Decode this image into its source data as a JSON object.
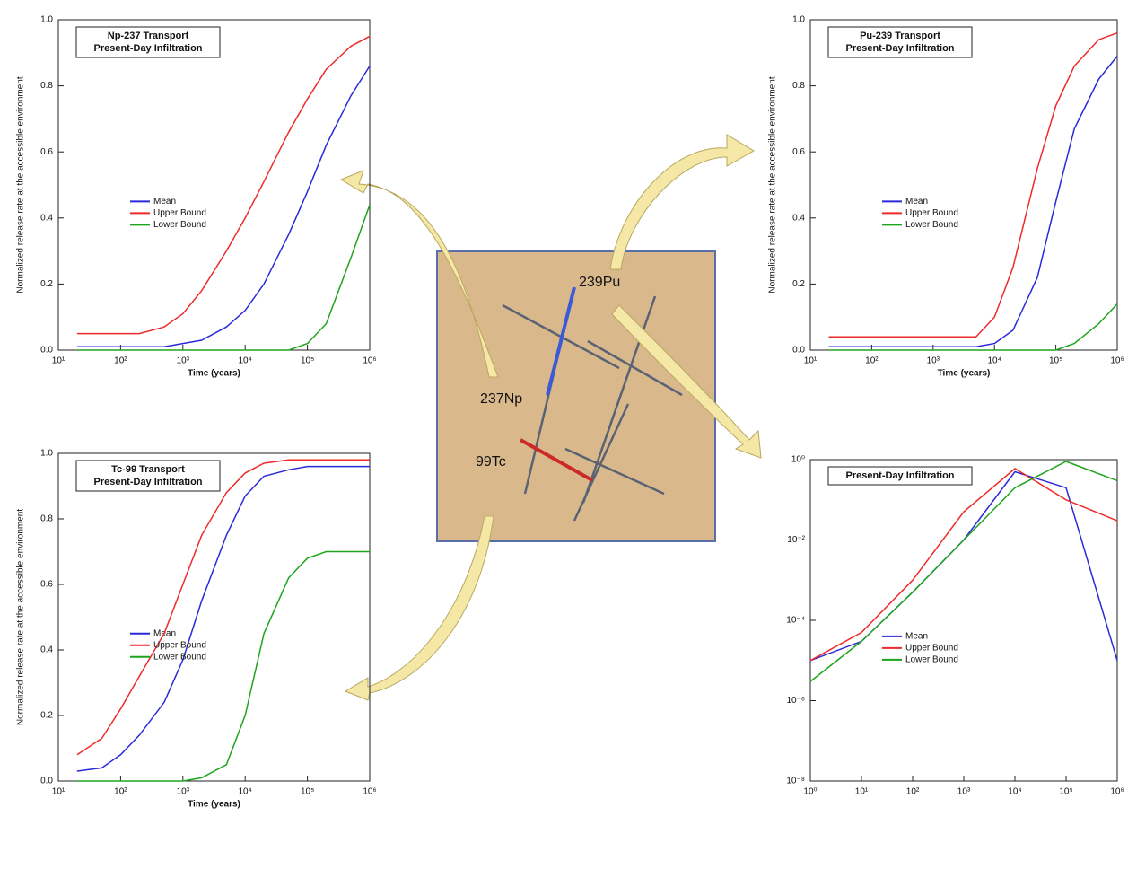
{
  "chart_data": [
    {
      "type": "line",
      "title": "Np-237 Transport",
      "subtitle": "Present-Day Infiltration",
      "x_label": "Time (years)",
      "y_label": "Normalized release rate at the accessible environment",
      "x": [
        20,
        50,
        100,
        200,
        500,
        1000,
        2000,
        5000,
        10000,
        20000,
        50000,
        100000,
        200000,
        500000,
        1000000
      ],
      "xlim": [
        10,
        1000000
      ],
      "x_log": true,
      "xticks": [
        {
          "value": 10,
          "label": "10¹"
        },
        {
          "value": 100,
          "label": "10²"
        },
        {
          "value": 1000,
          "label": "10³"
        },
        {
          "value": 10000,
          "label": "10⁴"
        },
        {
          "value": 100000,
          "label": "10⁵"
        },
        {
          "value": 1000000,
          "label": "10⁶"
        }
      ],
      "ylim": [
        0,
        1
      ],
      "yticks": [
        {
          "value": 0,
          "label": "0.0"
        },
        0.2,
        0.4,
        0.6,
        0.8,
        {
          "value": 1,
          "label": "1.0"
        }
      ],
      "series": [
        {
          "name": "Mean",
          "color": "#2a2ad8",
          "values": [
            0.01,
            0.01,
            0.01,
            0.01,
            0.01,
            0.02,
            0.03,
            0.07,
            0.12,
            0.2,
            0.35,
            0.48,
            0.62,
            0.77,
            0.86
          ]
        },
        {
          "name": "Upper Bound",
          "color": "#ee2a2a",
          "values": [
            0.05,
            0.05,
            0.05,
            0.05,
            0.07,
            0.11,
            0.18,
            0.3,
            0.4,
            0.51,
            0.66,
            0.76,
            0.85,
            0.92,
            0.95
          ]
        },
        {
          "name": "Lower Bound",
          "color": "#1ea51e",
          "values": [
            0,
            0,
            0,
            0,
            0,
            0,
            0,
            0,
            0,
            0,
            0,
            0.02,
            0.08,
            0.28,
            0.44
          ]
        }
      ]
    },
    {
      "type": "line",
      "title": "Pu-239 Transport",
      "subtitle": "Present-Day Infiltration",
      "x_label": "Time (years)",
      "y_label": "Normalized release rate at the accessible environment",
      "x": [
        20,
        50,
        100,
        200,
        500,
        1000,
        2000,
        5000,
        10000,
        20000,
        50000,
        100000,
        200000,
        500000,
        1000000
      ],
      "xlim": [
        10,
        1000000
      ],
      "x_log": true,
      "xticks": [
        {
          "value": 10,
          "label": "10¹"
        },
        {
          "value": 100,
          "label": "10²"
        },
        {
          "value": 1000,
          "label": "10³"
        },
        {
          "value": 10000,
          "label": "10⁴"
        },
        {
          "value": 100000,
          "label": "10⁵"
        },
        {
          "value": 1000000,
          "label": "10⁶"
        }
      ],
      "ylim": [
        0,
        1
      ],
      "yticks": [
        {
          "value": 0,
          "label": "0.0"
        },
        0.2,
        0.4,
        0.6,
        0.8,
        {
          "value": 1,
          "label": "1.0"
        }
      ],
      "series": [
        {
          "name": "Mean",
          "color": "#2a2ad8",
          "values": [
            0.01,
            0.01,
            0.01,
            0.01,
            0.01,
            0.01,
            0.01,
            0.01,
            0.02,
            0.06,
            0.22,
            0.45,
            0.67,
            0.82,
            0.89
          ]
        },
        {
          "name": "Upper Bound",
          "color": "#ee2a2a",
          "values": [
            0.04,
            0.04,
            0.04,
            0.04,
            0.04,
            0.04,
            0.04,
            0.04,
            0.1,
            0.25,
            0.55,
            0.74,
            0.86,
            0.94,
            0.96
          ]
        },
        {
          "name": "Lower Bound",
          "color": "#1ea51e",
          "values": [
            0,
            0,
            0,
            0,
            0,
            0,
            0,
            0,
            0,
            0,
            0,
            0,
            0.02,
            0.08,
            0.14
          ]
        }
      ]
    },
    {
      "type": "line",
      "title": "Tc-99 Transport",
      "subtitle": "Present-Day Infiltration",
      "x_label": "Time (years)",
      "y_label": "Normalized release rate at the accessible environment",
      "x": [
        20,
        50,
        100,
        200,
        500,
        1000,
        2000,
        5000,
        10000,
        20000,
        50000,
        100000,
        200000,
        500000,
        1000000
      ],
      "xlim": [
        10,
        1000000
      ],
      "x_log": true,
      "xticks": [
        {
          "value": 10,
          "label": "10¹"
        },
        {
          "value": 100,
          "label": "10²"
        },
        {
          "value": 1000,
          "label": "10³"
        },
        {
          "value": 10000,
          "label": "10⁴"
        },
        {
          "value": 100000,
          "label": "10⁵"
        },
        {
          "value": 1000000,
          "label": "10⁶"
        }
      ],
      "ylim": [
        0,
        1
      ],
      "yticks": [
        {
          "value": 0,
          "label": "0.0"
        },
        0.2,
        0.4,
        0.6,
        0.8,
        {
          "value": 1,
          "label": "1.0"
        }
      ],
      "series": [
        {
          "name": "Mean",
          "color": "#2a2ad8",
          "values": [
            0.03,
            0.04,
            0.08,
            0.14,
            0.24,
            0.37,
            0.55,
            0.75,
            0.87,
            0.93,
            0.95,
            0.96,
            0.96,
            0.96,
            0.96
          ]
        },
        {
          "name": "Upper Bound",
          "color": "#ee2a2a",
          "values": [
            0.08,
            0.13,
            0.22,
            0.32,
            0.45,
            0.6,
            0.75,
            0.88,
            0.94,
            0.97,
            0.98,
            0.98,
            0.98,
            0.98,
            0.98
          ]
        },
        {
          "name": "Lower Bound",
          "color": "#1ea51e",
          "values": [
            0,
            0,
            0,
            0,
            0,
            0,
            0.01,
            0.05,
            0.2,
            0.45,
            0.62,
            0.68,
            0.7,
            0.7,
            0.7
          ]
        }
      ]
    },
    {
      "type": "line",
      "title": "Present-Day Infiltration",
      "x": [
        1,
        10,
        100,
        1000,
        10000,
        100000,
        1000000
      ],
      "xlim": [
        1,
        1000000
      ],
      "x_log": true,
      "y_log": true,
      "xticks": [
        {
          "value": 1,
          "label": "10⁰"
        },
        {
          "value": 10,
          "label": "10¹"
        },
        {
          "value": 100,
          "label": "10²"
        },
        {
          "value": 1000,
          "label": "10³"
        },
        {
          "value": 10000,
          "label": "10⁴"
        },
        {
          "value": 100000,
          "label": "10⁵"
        },
        {
          "value": 1000000,
          "label": "10⁶"
        }
      ],
      "ylim": [
        1e-08,
        1
      ],
      "yticks": [
        {
          "value": 1e-08,
          "label": "10⁻⁸"
        },
        {
          "value": 1e-06,
          "label": "10⁻⁶"
        },
        {
          "value": 0.0001,
          "label": "10⁻⁴"
        },
        {
          "value": 0.01,
          "label": "10⁻²"
        },
        {
          "value": 1,
          "label": "10⁰"
        }
      ],
      "series": [
        {
          "name": "Mean",
          "color": "#2a2ad8",
          "values": [
            1e-05,
            3e-05,
            0.0005,
            0.01,
            0.5,
            0.2,
            1e-05
          ]
        },
        {
          "name": "Upper Bound",
          "color": "#ee2a2a",
          "values": [
            1e-05,
            5e-05,
            0.001,
            0.05,
            0.6,
            0.1,
            0.03
          ]
        },
        {
          "name": "Lower Bound",
          "color": "#1ea51e",
          "values": [
            3e-06,
            3e-05,
            0.0005,
            0.01,
            0.2,
            0.9,
            0.3
          ]
        }
      ]
    }
  ],
  "diagram": {
    "labels": [
      "239Pu",
      "237Np",
      "99Tc"
    ]
  }
}
